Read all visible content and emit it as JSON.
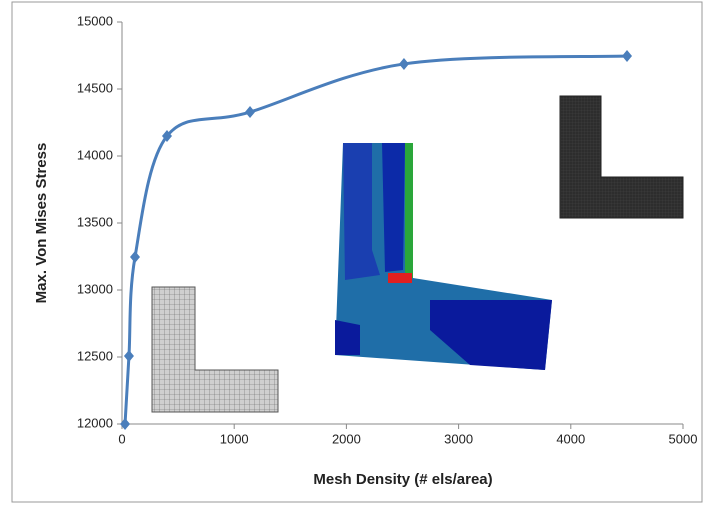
{
  "chart_data": {
    "type": "line",
    "x_label": "Mesh Density (# els/area)",
    "y_label": "Max. Von Mises  Stress",
    "x": [
      27,
      62,
      116,
      401,
      1141,
      2513,
      4501
    ],
    "values": [
      12000,
      12507,
      13246,
      14149,
      14328,
      14687,
      14746
    ],
    "color": "#4a7ebb",
    "xlim": [
      0,
      5000
    ],
    "xticks": [
      0,
      1000,
      2000,
      3000,
      4000,
      5000
    ],
    "ylim": [
      12000,
      15000
    ],
    "yticks": [
      12000,
      12500,
      13000,
      13500,
      14000,
      14500,
      15000
    ],
    "smooth": true,
    "grid": false
  }
}
